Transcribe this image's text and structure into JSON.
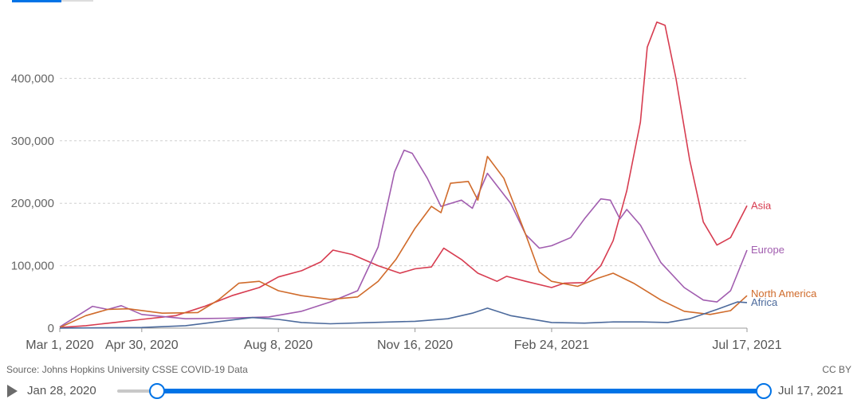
{
  "timeline": {
    "start_label": "Jan 28, 2020",
    "end_label": "Jul 17, 2021"
  },
  "footer": {
    "source": "Source: Johns Hopkins University CSSE COVID-19 Data",
    "license": "CC BY"
  },
  "chart_data": {
    "type": "line",
    "xlim": [
      "2020-03-01",
      "2021-07-17"
    ],
    "ylim": [
      0,
      500000
    ],
    "yticks": [
      0,
      100000,
      200000,
      300000,
      400000
    ],
    "ytick_labels": [
      "0",
      "100,000",
      "200,000",
      "300,000",
      "400,000"
    ],
    "xticks": [
      "2020-03-01",
      "2020-04-30",
      "2020-08-08",
      "2020-11-16",
      "2021-02-24",
      "2021-07-17"
    ],
    "xtick_labels": [
      "Mar 1, 2020",
      "Apr 30, 2020",
      "Aug 8, 2020",
      "Nov 16, 2020",
      "Feb 24, 2021",
      "Jul 17, 2021"
    ],
    "grid": "horizontal dashed",
    "legend": "direct labels at line ends",
    "series": [
      {
        "name": "Asia",
        "color": "#d73c50",
        "points": [
          [
            "2020-03-01",
            1000
          ],
          [
            "2020-03-20",
            4000
          ],
          [
            "2020-04-10",
            9000
          ],
          [
            "2020-04-30",
            14000
          ],
          [
            "2020-05-25",
            20000
          ],
          [
            "2020-06-15",
            35000
          ],
          [
            "2020-07-05",
            52000
          ],
          [
            "2020-07-25",
            65000
          ],
          [
            "2020-08-08",
            82000
          ],
          [
            "2020-08-25",
            92000
          ],
          [
            "2020-09-08",
            106000
          ],
          [
            "2020-09-17",
            125000
          ],
          [
            "2020-10-01",
            118000
          ],
          [
            "2020-10-20",
            100000
          ],
          [
            "2020-11-05",
            88000
          ],
          [
            "2020-11-16",
            95000
          ],
          [
            "2020-11-28",
            98000
          ],
          [
            "2020-12-07",
            128000
          ],
          [
            "2020-12-20",
            110000
          ],
          [
            "2021-01-01",
            88000
          ],
          [
            "2021-01-15",
            75000
          ],
          [
            "2021-01-22",
            83000
          ],
          [
            "2021-02-05",
            75000
          ],
          [
            "2021-02-24",
            65000
          ],
          [
            "2021-03-05",
            72000
          ],
          [
            "2021-03-20",
            73000
          ],
          [
            "2021-04-01",
            100000
          ],
          [
            "2021-04-10",
            140000
          ],
          [
            "2021-04-20",
            220000
          ],
          [
            "2021-04-30",
            330000
          ],
          [
            "2021-05-05",
            450000
          ],
          [
            "2021-05-12",
            490000
          ],
          [
            "2021-05-18",
            485000
          ],
          [
            "2021-05-26",
            400000
          ],
          [
            "2021-06-05",
            270000
          ],
          [
            "2021-06-15",
            170000
          ],
          [
            "2021-06-25",
            133000
          ],
          [
            "2021-07-05",
            145000
          ],
          [
            "2021-07-17",
            196000
          ]
        ]
      },
      {
        "name": "Europe",
        "color": "#a15daf",
        "points": [
          [
            "2020-03-01",
            2000
          ],
          [
            "2020-03-25",
            35000
          ],
          [
            "2020-04-05",
            30000
          ],
          [
            "2020-04-15",
            36000
          ],
          [
            "2020-04-30",
            22000
          ],
          [
            "2020-06-01",
            15000
          ],
          [
            "2020-07-01",
            16000
          ],
          [
            "2020-08-01",
            18000
          ],
          [
            "2020-08-25",
            27000
          ],
          [
            "2020-09-15",
            42000
          ],
          [
            "2020-10-05",
            60000
          ],
          [
            "2020-10-20",
            130000
          ],
          [
            "2020-11-01",
            250000
          ],
          [
            "2020-11-08",
            285000
          ],
          [
            "2020-11-14",
            280000
          ],
          [
            "2020-11-25",
            240000
          ],
          [
            "2020-12-05",
            195000
          ],
          [
            "2020-12-20",
            205000
          ],
          [
            "2020-12-28",
            192000
          ],
          [
            "2021-01-08",
            248000
          ],
          [
            "2021-01-25",
            200000
          ],
          [
            "2021-02-05",
            150000
          ],
          [
            "2021-02-15",
            128000
          ],
          [
            "2021-02-24",
            132000
          ],
          [
            "2021-03-10",
            145000
          ],
          [
            "2021-03-20",
            175000
          ],
          [
            "2021-04-01",
            207000
          ],
          [
            "2021-04-08",
            205000
          ],
          [
            "2021-04-15",
            175000
          ],
          [
            "2021-04-20",
            190000
          ],
          [
            "2021-04-30",
            165000
          ],
          [
            "2021-05-15",
            105000
          ],
          [
            "2021-06-01",
            65000
          ],
          [
            "2021-06-15",
            45000
          ],
          [
            "2021-06-25",
            42000
          ],
          [
            "2021-07-05",
            60000
          ],
          [
            "2021-07-17",
            125000
          ]
        ]
      },
      {
        "name": "North America",
        "color": "#d06b2b",
        "points": [
          [
            "2020-03-01",
            1000
          ],
          [
            "2020-03-20",
            20000
          ],
          [
            "2020-04-05",
            30000
          ],
          [
            "2020-04-20",
            31000
          ],
          [
            "2020-05-15",
            24000
          ],
          [
            "2020-06-10",
            25000
          ],
          [
            "2020-06-25",
            45000
          ],
          [
            "2020-07-10",
            72000
          ],
          [
            "2020-07-25",
            75000
          ],
          [
            "2020-08-08",
            60000
          ],
          [
            "2020-08-25",
            52000
          ],
          [
            "2020-09-15",
            46000
          ],
          [
            "2020-10-05",
            50000
          ],
          [
            "2020-10-20",
            75000
          ],
          [
            "2020-11-02",
            110000
          ],
          [
            "2020-11-16",
            160000
          ],
          [
            "2020-11-28",
            195000
          ],
          [
            "2020-12-05",
            185000
          ],
          [
            "2020-12-12",
            232000
          ],
          [
            "2020-12-25",
            235000
          ],
          [
            "2021-01-01",
            205000
          ],
          [
            "2021-01-08",
            275000
          ],
          [
            "2021-01-20",
            240000
          ],
          [
            "2021-02-05",
            150000
          ],
          [
            "2021-02-15",
            90000
          ],
          [
            "2021-02-24",
            75000
          ],
          [
            "2021-03-15",
            67000
          ],
          [
            "2021-03-30",
            80000
          ],
          [
            "2021-04-10",
            88000
          ],
          [
            "2021-04-25",
            72000
          ],
          [
            "2021-05-15",
            45000
          ],
          [
            "2021-06-01",
            27000
          ],
          [
            "2021-06-20",
            22000
          ],
          [
            "2021-07-05",
            28000
          ],
          [
            "2021-07-17",
            52000
          ]
        ]
      },
      {
        "name": "Africa",
        "color": "#4c6a9c",
        "points": [
          [
            "2020-03-01",
            100
          ],
          [
            "2020-04-30",
            1000
          ],
          [
            "2020-06-01",
            4000
          ],
          [
            "2020-07-01",
            12000
          ],
          [
            "2020-07-20",
            17000
          ],
          [
            "2020-08-08",
            14000
          ],
          [
            "2020-08-25",
            9000
          ],
          [
            "2020-09-15",
            7000
          ],
          [
            "2020-10-15",
            9000
          ],
          [
            "2020-11-16",
            11000
          ],
          [
            "2020-12-10",
            15000
          ],
          [
            "2020-12-28",
            24000
          ],
          [
            "2021-01-08",
            32000
          ],
          [
            "2021-01-25",
            20000
          ],
          [
            "2021-02-24",
            9000
          ],
          [
            "2021-03-20",
            8000
          ],
          [
            "2021-04-10",
            10000
          ],
          [
            "2021-05-01",
            10000
          ],
          [
            "2021-05-20",
            9000
          ],
          [
            "2021-06-05",
            15000
          ],
          [
            "2021-06-25",
            30000
          ],
          [
            "2021-07-10",
            42000
          ],
          [
            "2021-07-17",
            41000
          ]
        ]
      }
    ]
  }
}
